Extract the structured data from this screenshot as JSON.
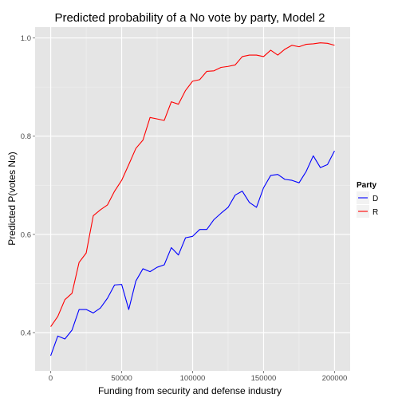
{
  "chart_data": {
    "type": "line",
    "title": "Predicted probability of a No vote by party, Model 2",
    "xlabel": "Funding from security and defense industry",
    "ylabel": "Predicted P(votes No)",
    "xlim": [
      -11000,
      211000
    ],
    "ylim": [
      0.322,
      1.022
    ],
    "x_ticks": [
      0,
      50000,
      100000,
      150000,
      200000
    ],
    "x_tick_labels": [
      "0",
      "50000",
      "100000",
      "150000",
      "200000"
    ],
    "y_ticks": [
      0.4,
      0.6,
      0.8,
      1.0
    ],
    "y_tick_labels": [
      "0.4",
      "0.6",
      "0.8",
      "1.0"
    ],
    "grid": true,
    "legend": {
      "title": "Party",
      "position": "right"
    },
    "x": [
      0,
      5000,
      10000,
      15000,
      20000,
      25000,
      30000,
      35000,
      40000,
      45000,
      50000,
      55000,
      60000,
      65000,
      70000,
      75000,
      80000,
      85000,
      90000,
      95000,
      100000,
      105000,
      110000,
      115000,
      120000,
      125000,
      130000,
      135000,
      140000,
      145000,
      150000,
      155000,
      160000,
      165000,
      170000,
      175000,
      180000,
      185000,
      190000,
      195000,
      200000
    ],
    "series": [
      {
        "name": "D",
        "color": "#0000ff",
        "values": [
          0.353,
          0.393,
          0.387,
          0.405,
          0.447,
          0.447,
          0.44,
          0.45,
          0.47,
          0.497,
          0.498,
          0.447,
          0.505,
          0.53,
          0.524,
          0.533,
          0.538,
          0.573,
          0.558,
          0.593,
          0.596,
          0.61,
          0.61,
          0.63,
          0.643,
          0.655,
          0.68,
          0.688,
          0.665,
          0.655,
          0.695,
          0.72,
          0.722,
          0.712,
          0.71,
          0.705,
          0.728,
          0.76,
          0.736,
          0.742,
          0.77
        ]
      },
      {
        "name": "R",
        "color": "#ff0000",
        "values": [
          0.412,
          0.433,
          0.467,
          0.48,
          0.543,
          0.562,
          0.638,
          0.65,
          0.66,
          0.688,
          0.71,
          0.742,
          0.775,
          0.792,
          0.838,
          0.835,
          0.832,
          0.87,
          0.865,
          0.893,
          0.912,
          0.915,
          0.932,
          0.933,
          0.94,
          0.942,
          0.945,
          0.962,
          0.965,
          0.965,
          0.962,
          0.975,
          0.965,
          0.977,
          0.985,
          0.982,
          0.987,
          0.988,
          0.99,
          0.989,
          0.985
        ]
      }
    ]
  }
}
